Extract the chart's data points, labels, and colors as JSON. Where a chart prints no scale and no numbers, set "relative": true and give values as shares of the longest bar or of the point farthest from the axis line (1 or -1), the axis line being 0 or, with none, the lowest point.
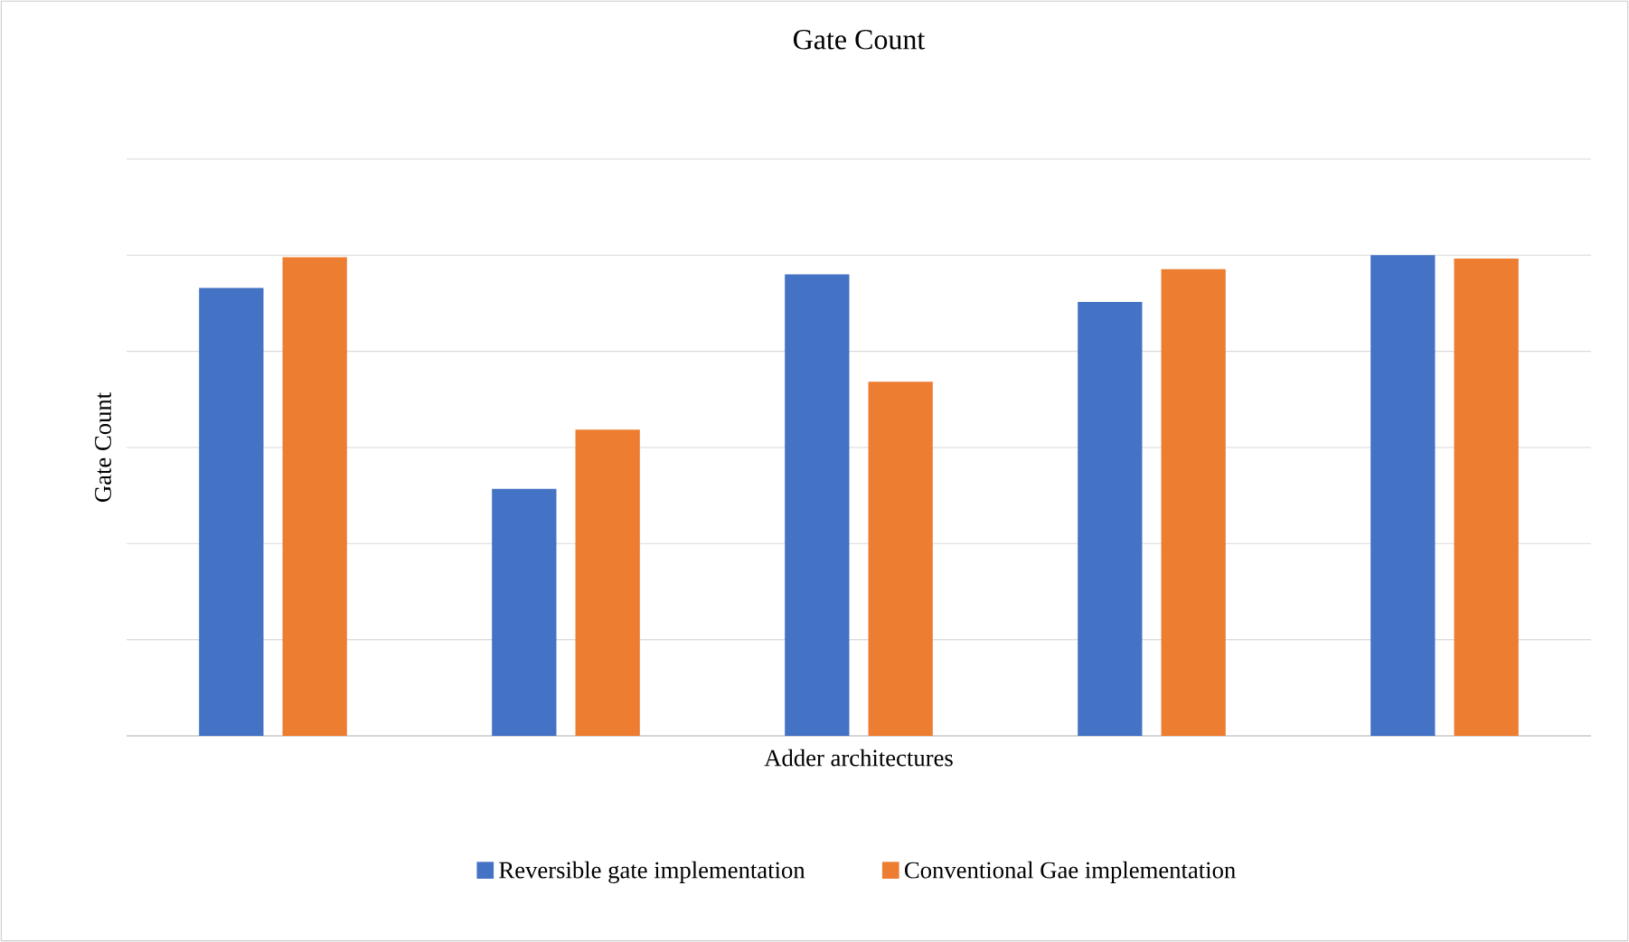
{
  "chart_data": {
    "type": "bar",
    "title": "Gate Count",
    "xlabel": "Adder architectures",
    "ylabel": "Gate Count",
    "relative": true,
    "grid": "y",
    "legend": "bottom",
    "categories": [
      null,
      null,
      null,
      null,
      null
    ],
    "series": [
      {
        "name": "Reversible gate implementation",
        "color": "#4472c4",
        "values": [
          0.932,
          0.514,
          0.96,
          0.903,
          1.0
        ]
      },
      {
        "name": "Conventional Gae implementation",
        "color": "#ed7d31",
        "values": [
          0.996,
          0.637,
          0.737,
          0.971,
          0.993
        ]
      }
    ]
  }
}
